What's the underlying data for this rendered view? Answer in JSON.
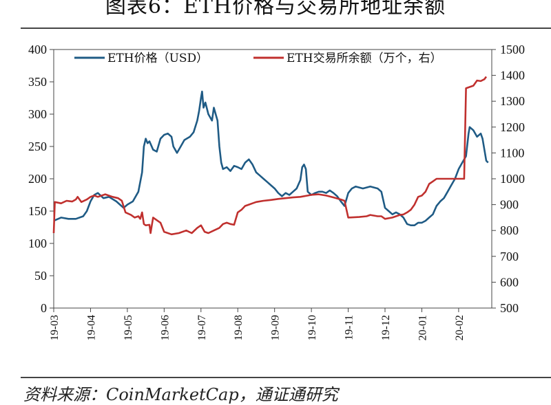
{
  "figure": {
    "title": "图表6：ETH价格与交易所地址余额",
    "source": "资料来源：CoinMarketCap，通证通研究"
  },
  "chart_data": {
    "type": "line",
    "legend": {
      "placement": "top",
      "entries": [
        "ETH价格（USD）",
        "ETH交易所余额（万个，右）"
      ]
    },
    "x_ticks": [
      "19-03",
      "19-04",
      "19-05",
      "19-06",
      "19-07",
      "19-08",
      "19-09",
      "19-10",
      "19-11",
      "19-12",
      "20-01",
      "20-02"
    ],
    "x_range": [
      0,
      11.9
    ],
    "y_left": {
      "ylim": [
        0,
        400
      ],
      "ticks": [
        0,
        50,
        100,
        150,
        200,
        250,
        300,
        350,
        400
      ]
    },
    "y_right": {
      "ylim": [
        500,
        1500
      ],
      "ticks": [
        500,
        600,
        700,
        800,
        900,
        1000,
        1100,
        1200,
        1300,
        1400,
        1500
      ]
    },
    "series": [
      {
        "name": "ETH价格（USD）",
        "axis": "left",
        "color": "#1f5b85",
        "points": [
          [
            0,
            135
          ],
          [
            0.2,
            140
          ],
          [
            0.4,
            138
          ],
          [
            0.6,
            138
          ],
          [
            0.8,
            142
          ],
          [
            0.9,
            150
          ],
          [
            1.0,
            165
          ],
          [
            1.1,
            175
          ],
          [
            1.2,
            178
          ],
          [
            1.35,
            170
          ],
          [
            1.5,
            172
          ],
          [
            1.7,
            165
          ],
          [
            1.8,
            160
          ],
          [
            1.9,
            155
          ],
          [
            2.0,
            160
          ],
          [
            2.15,
            165
          ],
          [
            2.3,
            180
          ],
          [
            2.4,
            210
          ],
          [
            2.45,
            250
          ],
          [
            2.5,
            262
          ],
          [
            2.55,
            255
          ],
          [
            2.6,
            258
          ],
          [
            2.7,
            245
          ],
          [
            2.8,
            242
          ],
          [
            2.9,
            262
          ],
          [
            3.0,
            268
          ],
          [
            3.1,
            270
          ],
          [
            3.2,
            265
          ],
          [
            3.25,
            250
          ],
          [
            3.35,
            240
          ],
          [
            3.45,
            250
          ],
          [
            3.55,
            260
          ],
          [
            3.7,
            265
          ],
          [
            3.8,
            272
          ],
          [
            3.9,
            290
          ],
          [
            3.95,
            305
          ],
          [
            4.0,
            325
          ],
          [
            4.03,
            335
          ],
          [
            4.07,
            310
          ],
          [
            4.12,
            318
          ],
          [
            4.2,
            300
          ],
          [
            4.3,
            290
          ],
          [
            4.35,
            310
          ],
          [
            4.45,
            290
          ],
          [
            4.5,
            250
          ],
          [
            4.55,
            225
          ],
          [
            4.6,
            215
          ],
          [
            4.7,
            218
          ],
          [
            4.8,
            212
          ],
          [
            4.9,
            220
          ],
          [
            5.0,
            218
          ],
          [
            5.1,
            215
          ],
          [
            5.2,
            225
          ],
          [
            5.3,
            230
          ],
          [
            5.4,
            222
          ],
          [
            5.5,
            210
          ],
          [
            5.6,
            205
          ],
          [
            5.7,
            200
          ],
          [
            5.8,
            195
          ],
          [
            5.9,
            190
          ],
          [
            6.0,
            185
          ],
          [
            6.1,
            178
          ],
          [
            6.2,
            173
          ],
          [
            6.3,
            178
          ],
          [
            6.4,
            175
          ],
          [
            6.5,
            180
          ],
          [
            6.6,
            185
          ],
          [
            6.7,
            198
          ],
          [
            6.75,
            218
          ],
          [
            6.8,
            222
          ],
          [
            6.85,
            215
          ],
          [
            6.9,
            180
          ],
          [
            7.0,
            175
          ],
          [
            7.1,
            178
          ],
          [
            7.2,
            180
          ],
          [
            7.3,
            180
          ],
          [
            7.4,
            178
          ],
          [
            7.5,
            182
          ],
          [
            7.6,
            178
          ],
          [
            7.7,
            173
          ],
          [
            7.8,
            165
          ],
          [
            7.9,
            158
          ],
          [
            8.0,
            178
          ],
          [
            8.1,
            185
          ],
          [
            8.2,
            188
          ],
          [
            8.4,
            185
          ],
          [
            8.6,
            188
          ],
          [
            8.8,
            185
          ],
          [
            8.9,
            180
          ],
          [
            9.0,
            155
          ],
          [
            9.1,
            150
          ],
          [
            9.2,
            145
          ],
          [
            9.3,
            148
          ],
          [
            9.4,
            145
          ],
          [
            9.5,
            140
          ],
          [
            9.6,
            130
          ],
          [
            9.7,
            128
          ],
          [
            9.8,
            128
          ],
          [
            9.9,
            132
          ],
          [
            10.0,
            132
          ],
          [
            10.1,
            135
          ],
          [
            10.2,
            140
          ],
          [
            10.3,
            145
          ],
          [
            10.4,
            158
          ],
          [
            10.5,
            165
          ],
          [
            10.6,
            170
          ],
          [
            10.7,
            180
          ],
          [
            10.8,
            190
          ],
          [
            10.9,
            200
          ],
          [
            11.0,
            215
          ],
          [
            11.1,
            225
          ],
          [
            11.2,
            235
          ],
          [
            11.27,
            270
          ],
          [
            11.3,
            280
          ],
          [
            11.4,
            275
          ],
          [
            11.5,
            265
          ],
          [
            11.6,
            270
          ],
          [
            11.65,
            262
          ],
          [
            11.7,
            245
          ],
          [
            11.75,
            228
          ],
          [
            11.8,
            225
          ]
        ]
      },
      {
        "name": "ETH交易所余额（万个，右）",
        "axis": "right",
        "color": "#c0302e",
        "points": [
          [
            0,
            790
          ],
          [
            0.03,
            910
          ],
          [
            0.2,
            905
          ],
          [
            0.35,
            915
          ],
          [
            0.5,
            912
          ],
          [
            0.6,
            920
          ],
          [
            0.65,
            930
          ],
          [
            0.75,
            910
          ],
          [
            0.9,
            920
          ],
          [
            1.0,
            930
          ],
          [
            1.1,
            935
          ],
          [
            1.2,
            930
          ],
          [
            1.4,
            940
          ],
          [
            1.6,
            930
          ],
          [
            1.75,
            925
          ],
          [
            1.85,
            915
          ],
          [
            1.95,
            870
          ],
          [
            2.1,
            860
          ],
          [
            2.2,
            850
          ],
          [
            2.3,
            855
          ],
          [
            2.35,
            845
          ],
          [
            2.4,
            870
          ],
          [
            2.45,
            825
          ],
          [
            2.5,
            820
          ],
          [
            2.6,
            822
          ],
          [
            2.63,
            790
          ],
          [
            2.7,
            850
          ],
          [
            2.8,
            840
          ],
          [
            2.9,
            830
          ],
          [
            3.0,
            795
          ],
          [
            3.2,
            785
          ],
          [
            3.4,
            790
          ],
          [
            3.6,
            800
          ],
          [
            3.75,
            790
          ],
          [
            3.9,
            810
          ],
          [
            4.0,
            820
          ],
          [
            4.1,
            795
          ],
          [
            4.2,
            790
          ],
          [
            4.35,
            800
          ],
          [
            4.5,
            810
          ],
          [
            4.6,
            825
          ],
          [
            4.7,
            830
          ],
          [
            4.8,
            825
          ],
          [
            4.9,
            822
          ],
          [
            5.0,
            870
          ],
          [
            5.1,
            880
          ],
          [
            5.2,
            895
          ],
          [
            5.3,
            900
          ],
          [
            5.4,
            905
          ],
          [
            5.5,
            910
          ],
          [
            5.7,
            915
          ],
          [
            5.9,
            918
          ],
          [
            6.0,
            920
          ],
          [
            6.1,
            922
          ],
          [
            6.3,
            925
          ],
          [
            6.5,
            928
          ],
          [
            6.7,
            930
          ],
          [
            6.9,
            935
          ],
          [
            7.0,
            938
          ],
          [
            7.2,
            940
          ],
          [
            7.4,
            935
          ],
          [
            7.6,
            928
          ],
          [
            7.8,
            920
          ],
          [
            7.9,
            915
          ],
          [
            8.0,
            850
          ],
          [
            8.3,
            852
          ],
          [
            8.5,
            855
          ],
          [
            8.6,
            860
          ],
          [
            8.8,
            855
          ],
          [
            8.9,
            855
          ],
          [
            9.0,
            845
          ],
          [
            9.2,
            850
          ],
          [
            9.4,
            860
          ],
          [
            9.5,
            862
          ],
          [
            9.6,
            870
          ],
          [
            9.7,
            880
          ],
          [
            9.8,
            900
          ],
          [
            9.9,
            930
          ],
          [
            10.0,
            935
          ],
          [
            10.1,
            950
          ],
          [
            10.2,
            980
          ],
          [
            10.3,
            990
          ],
          [
            10.4,
            1000
          ],
          [
            10.6,
            1000
          ],
          [
            10.8,
            1000
          ],
          [
            11.0,
            1000
          ],
          [
            11.1,
            1000
          ],
          [
            11.15,
            1000
          ],
          [
            11.2,
            1350
          ],
          [
            11.3,
            1355
          ],
          [
            11.4,
            1360
          ],
          [
            11.5,
            1380
          ],
          [
            11.6,
            1378
          ],
          [
            11.7,
            1385
          ],
          [
            11.75,
            1395
          ]
        ]
      }
    ]
  }
}
